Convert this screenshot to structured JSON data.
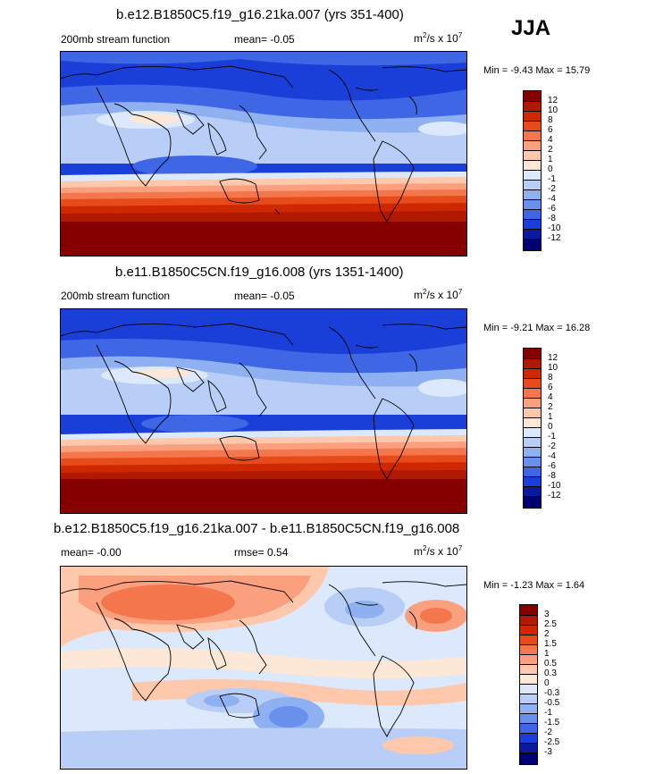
{
  "season": "JJA",
  "units_base": "m",
  "units_exp": "2",
  "units_mid": "/s x 10",
  "units_pow": "7",
  "chart_data": [
    {
      "type": "heatmap",
      "title": "b.e12.B1850C5.f19_g16.21ka.007 (yrs 351-400)",
      "left_label": "200mb stream function",
      "mid_label": "mean=  -0.05",
      "min_max": "Min =  -9.43 Max =  15.79",
      "levels": [
        "12",
        "10",
        "8",
        "6",
        "4",
        "2",
        "1",
        "0",
        "-1",
        "-2",
        "-4",
        "-6",
        "-8",
        "-10",
        "-12"
      ]
    },
    {
      "type": "heatmap",
      "title": "b.e11.B1850C5CN.f19_g16.008 (yrs 1351-1400)",
      "left_label": "200mb stream function",
      "mid_label": "mean=  -0.05",
      "min_max": "Min =  -9.21 Max =  16.28",
      "levels": [
        "12",
        "10",
        "8",
        "6",
        "4",
        "2",
        "1",
        "0",
        "-1",
        "-2",
        "-4",
        "-6",
        "-8",
        "-10",
        "-12"
      ]
    },
    {
      "type": "heatmap",
      "title": "b.e12.B1850C5.f19_g16.21ka.007 - b.e11.B1850C5CN.f19_g16.008",
      "left_label": "mean=  -0.00",
      "mid_label": "rmse=   0.54",
      "min_max": "Min =  -1.23 Max =   1.64",
      "levels": [
        "3",
        "2.5",
        "2",
        "1.5",
        "1",
        "0.5",
        "0.3",
        "0",
        "-0.3",
        "-0.5",
        "-1",
        "-1.5",
        "-2",
        "-2.5",
        "-3"
      ]
    }
  ],
  "palette": [
    "#870000",
    "#b01800",
    "#cd2800",
    "#e74b1a",
    "#f4764d",
    "#fba07f",
    "#fdc8ab",
    "#fde8d8",
    "#dce8fb",
    "#b8cef7",
    "#8fb0f1",
    "#6890ec",
    "#3e66e5",
    "#1a3fd8",
    "#0a1a9a",
    "#000070"
  ]
}
